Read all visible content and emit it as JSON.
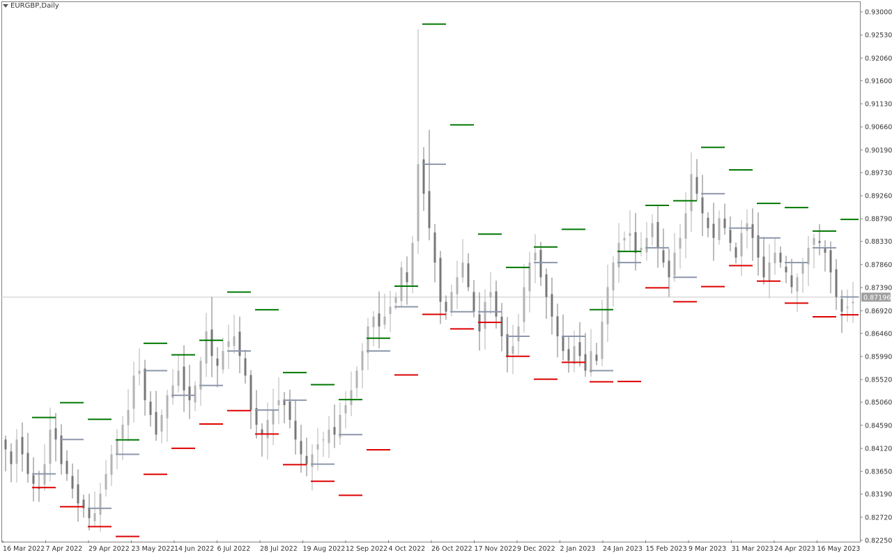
{
  "window": {
    "title": "EURGBP,Daily"
  },
  "colors": {
    "background": "#ffffff",
    "frame": "#808080",
    "bull_candle": "#b3b3b3",
    "bear_candle": "#777777",
    "upper_level": "#007700",
    "lower_level": "#dd0000",
    "mid_level": "#8c96aa",
    "price_line": "#c8c8c8",
    "price_label_bg": "#a0a0a0",
    "price_label_text": "#ffffff",
    "axis_text": "#333333"
  },
  "chart_data": {
    "type": "candlestick",
    "symbol": "EURGBP",
    "timeframe": "Daily",
    "ylim": [
      0.8225,
      0.93
    ],
    "y_ticks": [
      "0.93000",
      "0.92530",
      "0.92060",
      "0.91600",
      "0.91130",
      "0.90660",
      "0.90190",
      "0.89730",
      "0.89260",
      "0.88790",
      "0.88330",
      "0.87860",
      "0.87390",
      "0.86920",
      "0.86460",
      "0.85990",
      "0.85520",
      "0.85060",
      "0.84590",
      "0.84120",
      "0.83650",
      "0.83190",
      "0.82720",
      "0.82250"
    ],
    "x_ticks": [
      "16 Mar 2022",
      "7 Apr 2022",
      "29 Apr 2022",
      "23 May 2022",
      "14 Jun 2022",
      "6 Jul 2022",
      "28 Jul 2022",
      "19 Aug 2022",
      "12 Sep 2022",
      "4 Oct 2022",
      "26 Oct 2022",
      "17 Nov 2022",
      "9 Dec 2022",
      "2 Jan 2023",
      "24 Jan 2023",
      "15 Feb 2023",
      "9 Mar 2023",
      "31 Mar 2023",
      "24 Apr 2023",
      "16 May 2023"
    ],
    "current_price": "0.87196",
    "closes": [
      0.841,
      0.838,
      0.843,
      0.84,
      0.836,
      0.834,
      0.833,
      0.838,
      0.845,
      0.843,
      0.838,
      0.836,
      0.833,
      0.83,
      0.829,
      0.827,
      0.828,
      0.832,
      0.836,
      0.84,
      0.843,
      0.846,
      0.849,
      0.856,
      0.857,
      0.851,
      0.848,
      0.844,
      0.848,
      0.852,
      0.854,
      0.857,
      0.853,
      0.851,
      0.854,
      0.859,
      0.865,
      0.86,
      0.858,
      0.861,
      0.863,
      0.864,
      0.86,
      0.856,
      0.849,
      0.846,
      0.844,
      0.847,
      0.849,
      0.851,
      0.85,
      0.847,
      0.843,
      0.84,
      0.838,
      0.84,
      0.842,
      0.843,
      0.845,
      0.844,
      0.848,
      0.85,
      0.853,
      0.857,
      0.861,
      0.866,
      0.868,
      0.866,
      0.868,
      0.87,
      0.872,
      0.878,
      0.875,
      0.883,
      0.899,
      0.893,
      0.886,
      0.879,
      0.871,
      0.869,
      0.873,
      0.876,
      0.879,
      0.874,
      0.869,
      0.865,
      0.871,
      0.873,
      0.868,
      0.864,
      0.86,
      0.862,
      0.866,
      0.874,
      0.879,
      0.881,
      0.876,
      0.872,
      0.868,
      0.864,
      0.861,
      0.859,
      0.862,
      0.86,
      0.857,
      0.861,
      0.859,
      0.867,
      0.874,
      0.879,
      0.883,
      0.884,
      0.885,
      0.881,
      0.882,
      0.884,
      0.887,
      0.882,
      0.879,
      0.876,
      0.881,
      0.884,
      0.889,
      0.897,
      0.893,
      0.889,
      0.886,
      0.884,
      0.888,
      0.886,
      0.883,
      0.88,
      0.885,
      0.887,
      0.884,
      0.88,
      0.876,
      0.879,
      0.881,
      0.879,
      0.877,
      0.874,
      0.876,
      0.879,
      0.882,
      0.884,
      0.883,
      0.881,
      0.877,
      0.872,
      0.869,
      0.87,
      0.871
    ]
  }
}
